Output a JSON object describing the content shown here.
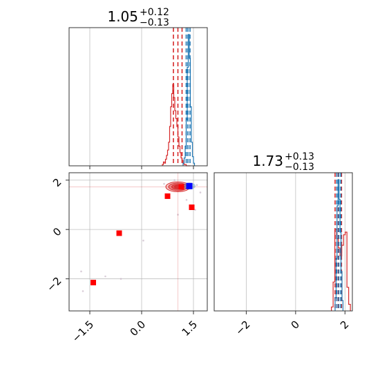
{
  "colors": {
    "red": "#d62728",
    "blue": "#1f77b4",
    "marker_red": "#ff0000",
    "marker_blue": "#0000ff"
  },
  "chart_data": [
    {
      "panel": "top-left",
      "type": "histogram",
      "title": {
        "value": "1.05",
        "plus": "+0.12",
        "minus": "−0.13"
      },
      "xlim": [
        -2.1,
        1.9
      ],
      "x_ticks": [
        -1.5,
        0.0,
        1.5
      ],
      "y_ticks": [],
      "show_xtick_labels": false,
      "series": [
        {
          "name": "",
          "color": "#d62728",
          "bins": [
            0.6,
            0.63,
            0.66,
            0.69,
            0.72,
            0.75,
            0.78,
            0.81,
            0.84,
            0.87,
            0.9,
            0.93,
            0.96,
            0.99,
            1.02,
            1.05,
            1.08,
            1.11,
            1.14,
            1.17,
            1.2,
            1.23,
            1.26,
            1.29,
            1.32,
            1.35,
            1.38,
            1.41
          ],
          "counts": [
            0.01,
            0.03,
            0.02,
            0.05,
            0.08,
            0.12,
            0.18,
            0.3,
            0.45,
            0.55,
            0.62,
            0.52,
            0.42,
            0.36,
            0.3,
            0.22,
            0.15,
            0.1,
            0.06,
            0.04,
            0.02,
            0.01,
            0.01,
            0.0,
            0.0,
            0.0,
            0.0
          ],
          "quantile_lines": [
            0.92,
            1.05,
            1.17
          ]
        },
        {
          "name": "",
          "color": "#1f77b4",
          "bins": [
            1.2,
            1.23,
            1.26,
            1.29,
            1.32,
            1.35,
            1.38,
            1.41,
            1.44,
            1.47,
            1.5,
            1.53
          ],
          "counts": [
            0.02,
            0.06,
            0.15,
            0.35,
            0.75,
            1.0,
            0.82,
            0.45,
            0.18,
            0.07,
            0.02
          ],
          "quantile_lines": [
            1.29,
            1.34,
            1.4
          ]
        }
      ]
    },
    {
      "panel": "bottom-left",
      "type": "scatter",
      "xlim": [
        -2.1,
        1.9
      ],
      "ylim": [
        -3.3,
        2.3
      ],
      "x_ticks": [
        -1.5,
        0.0,
        1.5
      ],
      "x_tick_labels": [
        "−1.5",
        "0.0",
        "1.5"
      ],
      "y_ticks": [
        -2,
        0,
        2
      ],
      "y_tick_labels": [
        "−2",
        "0",
        "2"
      ],
      "contours": {
        "center": [
          1.05,
          1.73
        ],
        "radii": [
          [
            0.35,
            0.2
          ],
          [
            0.27,
            0.15
          ],
          [
            0.18,
            0.1
          ],
          [
            0.1,
            0.06
          ]
        ],
        "color": "#d62728"
      },
      "truth_lines": {
        "x": 1.05,
        "y": 1.73
      },
      "red_markers": [
        [
          -1.4,
          -2.15
        ],
        [
          -0.65,
          -0.15
        ],
        [
          0.75,
          1.35
        ],
        [
          1.45,
          0.9
        ],
        [
          1.15,
          1.73
        ]
      ],
      "blue_markers": [
        [
          1.38,
          1.76
        ]
      ],
      "faint_points": [
        [
          -1.7,
          -2.5
        ],
        [
          -1.75,
          -1.7
        ],
        [
          -1.05,
          -1.9
        ],
        [
          -0.6,
          -2.0
        ],
        [
          0.05,
          -0.45
        ],
        [
          1.05,
          0.6
        ],
        [
          1.55,
          0.8
        ],
        [
          0.65,
          1.85
        ],
        [
          1.6,
          1.8
        ],
        [
          1.7,
          1.5
        ],
        [
          1.3,
          1.2
        ],
        [
          0.95,
          2.0
        ]
      ]
    },
    {
      "panel": "bottom-right",
      "type": "histogram",
      "title": {
        "value": "1.73",
        "plus": "+0.13",
        "minus": "−0.13"
      },
      "xlim": [
        -3.3,
        2.3
      ],
      "x_ticks": [
        -2,
        0,
        2
      ],
      "x_tick_labels": [
        "−2",
        "0",
        "2"
      ],
      "y_ticks": [],
      "series": [
        {
          "name": "",
          "color": "#d62728",
          "bins": [
            1.45,
            1.52,
            1.59,
            1.66,
            1.73,
            1.8,
            1.87,
            1.94,
            2.01,
            2.08,
            2.15,
            2.22
          ],
          "counts": [
            0.03,
            0.22,
            0.62,
            0.55,
            0.48,
            0.42,
            0.5,
            0.58,
            0.6,
            0.18,
            0.05
          ],
          "quantile_lines": [
            1.6,
            1.73,
            1.86
          ]
        },
        {
          "name": "",
          "color": "#1f77b4",
          "bins": [
            1.6,
            1.64,
            1.68,
            1.72,
            1.76,
            1.8,
            1.84,
            1.88,
            1.92
          ],
          "counts": [
            0.1,
            0.4,
            0.8,
            1.0,
            0.85,
            0.6,
            0.3,
            0.08
          ],
          "quantile_lines": [
            1.67,
            1.75,
            1.83
          ]
        }
      ]
    }
  ]
}
